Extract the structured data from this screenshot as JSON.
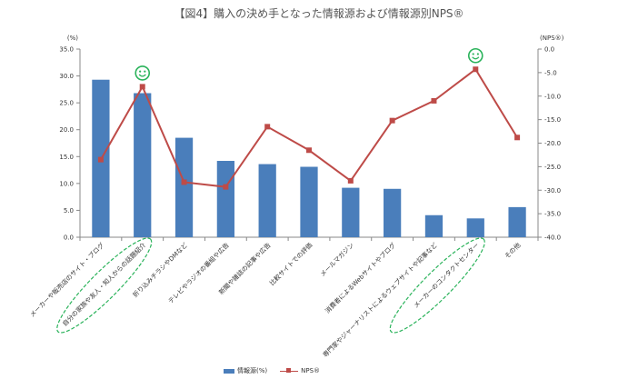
{
  "title": "【図4】購入の決め手となった情報源および情報源別NPS®",
  "colors": {
    "bar": "#4a7ebb",
    "line": "#be4b48",
    "smiley": "#2bb35b",
    "highlight_ellipse": "#2bb35b"
  },
  "chart_data": {
    "type": "bar+line",
    "categories": [
      "メーカーや販売店のサイト・ブログ",
      "自分の家族や友人・知人からの話題紹介",
      "折り込みチラシやDMなど",
      "テレビやラジオの番組や広告",
      "新聞や雑誌の記事や広告",
      "比較サイトでの評価",
      "メールマガジン",
      "消費者によるWebサイトやブログ",
      "専門家やジャーナリストによるウェブサイトや記事など",
      "メーカーのコンタクトセンター",
      "その他"
    ],
    "series": [
      {
        "name": "情報源(%)",
        "type": "bar",
        "axis": "left",
        "values": [
          29.3,
          26.8,
          18.5,
          14.2,
          13.6,
          13.1,
          9.2,
          9.0,
          4.1,
          3.5,
          5.6
        ]
      },
      {
        "name": "NPS®",
        "type": "line",
        "axis": "right",
        "values": [
          -23.5,
          -8.0,
          -28.3,
          -29.3,
          -16.5,
          -21.5,
          -28.0,
          -15.2,
          -11.0,
          -4.3,
          -18.8
        ]
      }
    ],
    "left_axis": {
      "unit": "(%)",
      "ylim": [
        0,
        35
      ],
      "ticks": [
        "0.0",
        "5.0",
        "10.0",
        "15.0",
        "20.0",
        "25.0",
        "30.0",
        "35.0"
      ]
    },
    "right_axis": {
      "unit": "(NPS®)",
      "ylim": [
        -40,
        0
      ],
      "ticks": [
        "0.0",
        "-5.0",
        "-10.0",
        "-15.0",
        "-20.0",
        "-25.0",
        "-30.0",
        "-35.0",
        "-40.0"
      ]
    },
    "grid": false,
    "legend": "bottom",
    "annotations": [
      {
        "type": "smiley",
        "category_index": 1
      },
      {
        "type": "smiley",
        "category_index": 9
      },
      {
        "type": "ellipse",
        "category_index": 1
      },
      {
        "type": "ellipse",
        "category_index": 9
      }
    ]
  }
}
